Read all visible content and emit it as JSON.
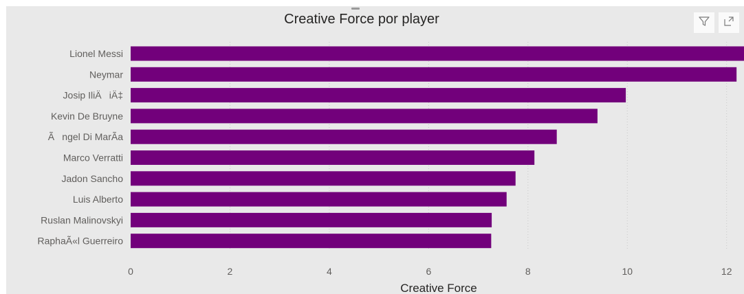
{
  "visual": {
    "title": "Creative Force por player",
    "icons": {
      "filter": "filter-icon",
      "focus_mode": "focus-mode-icon"
    }
  },
  "colors": {
    "bar": "#72007b",
    "background": "#e9e9e9",
    "grid": "#c8c8c8"
  },
  "chart_data": {
    "type": "bar",
    "orientation": "horizontal",
    "title": "Creative Force por player",
    "xlabel": "Creative Force",
    "ylabel": "",
    "categories": [
      "Lionel Messi",
      "Neymar",
      "Josip IliÄiÄ‡",
      "Kevin De Bruyne",
      "Ãngel Di MarÃa",
      "Marco Verratti",
      "Jadon Sancho",
      "Luis Alberto",
      "Ruslan Malinovskyi",
      "RaphaÃ«l Guerreiro"
    ],
    "values": [
      12.35,
      12.2,
      9.97,
      9.4,
      8.58,
      8.13,
      7.75,
      7.57,
      7.27,
      7.26
    ],
    "xlim": [
      0,
      12.35
    ],
    "xticks": [
      0,
      2,
      4,
      6,
      8,
      10,
      12
    ],
    "grid": true,
    "legend": "none"
  }
}
